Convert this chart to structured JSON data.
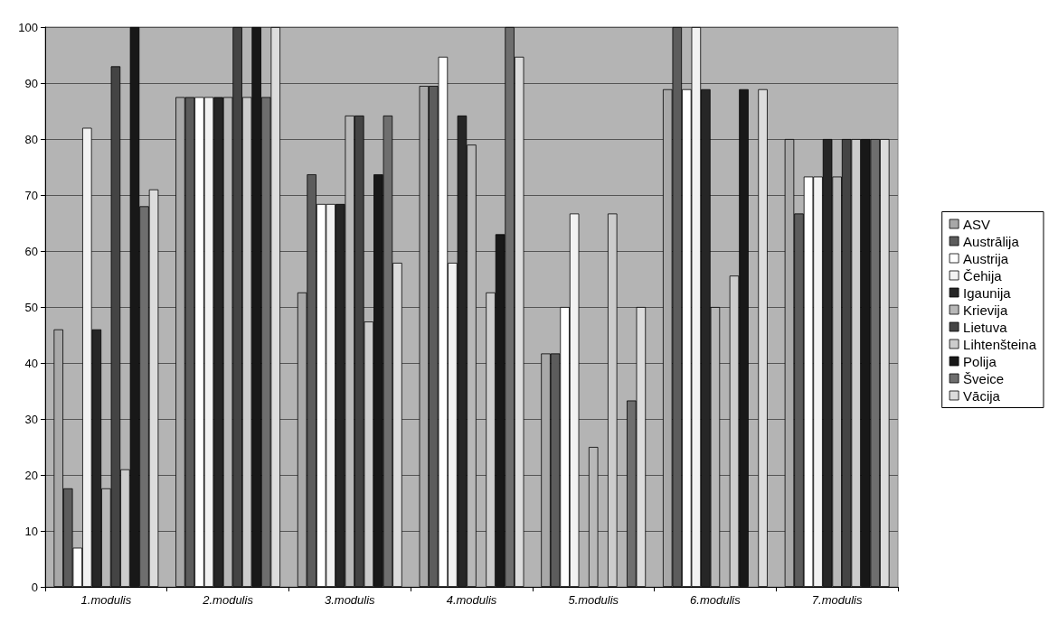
{
  "chart_data": {
    "type": "bar",
    "categories": [
      "1.modulis",
      "2.modulis",
      "3.modulis",
      "4.modulis",
      "5.modulis",
      "6.modulis",
      "7.modulis"
    ],
    "series": [
      {
        "name": "ASV",
        "color": "#a8a8a8",
        "values": [
          46,
          87.5,
          52.6,
          89.5,
          41.7,
          88.9,
          80
        ]
      },
      {
        "name": "Austrālija",
        "color": "#5c5c5c",
        "values": [
          17.6,
          87.5,
          73.7,
          89.5,
          41.7,
          100,
          66.7
        ]
      },
      {
        "name": "Austrija",
        "color": "#ffffff",
        "values": [
          7,
          87.5,
          68.4,
          94.7,
          50,
          88.9,
          73.3
        ]
      },
      {
        "name": "Čehija",
        "color": "#f2f2f2",
        "values": [
          82,
          87.5,
          68.4,
          57.9,
          66.7,
          100,
          73.3
        ]
      },
      {
        "name": "Igaunija",
        "color": "#262626",
        "values": [
          46,
          87.5,
          68.4,
          84.2,
          0,
          88.9,
          80
        ]
      },
      {
        "name": "Krievija",
        "color": "#b8b8b8",
        "values": [
          17.6,
          87.5,
          84.2,
          79,
          25,
          50,
          73.3
        ]
      },
      {
        "name": "Lietuva",
        "color": "#444444",
        "values": [
          93,
          100,
          84.2,
          0,
          0,
          0,
          80
        ]
      },
      {
        "name": "Lihtenšteina",
        "color": "#cccccc",
        "values": [
          21,
          87.5,
          47.4,
          52.6,
          66.7,
          55.6,
          80
        ]
      },
      {
        "name": "Polija",
        "color": "#181818",
        "values": [
          100,
          100,
          73.7,
          63,
          0,
          88.9,
          80
        ]
      },
      {
        "name": "Šveice",
        "color": "#6e6e6e",
        "values": [
          68,
          87.5,
          84.2,
          100,
          33.3,
          0,
          80
        ]
      },
      {
        "name": "Vācija",
        "color": "#dcdcdc",
        "values": [
          71,
          100,
          57.9,
          94.7,
          50,
          88.9,
          80
        ]
      }
    ],
    "ylim": [
      0,
      100
    ],
    "yticks": [
      0,
      10,
      20,
      30,
      40,
      50,
      60,
      70,
      80,
      90,
      100
    ],
    "grid": "y",
    "legend": "right"
  }
}
